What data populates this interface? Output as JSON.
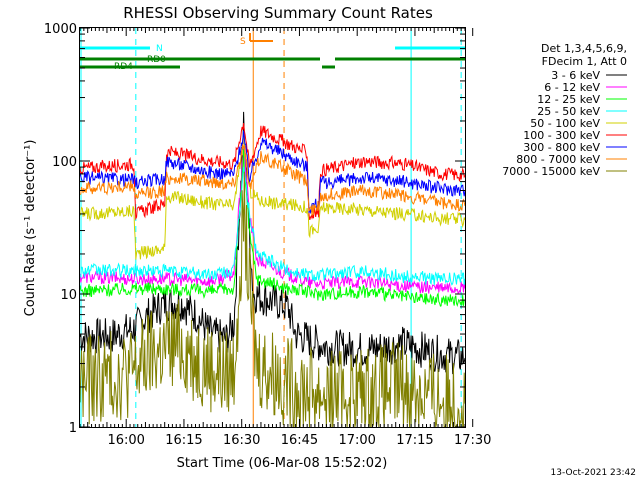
{
  "chart_data": {
    "type": "line",
    "title": "RHESSI Observing Summary Count Rates",
    "xlabel": "Start Time (06-Mar-08 15:52:02)",
    "ylabel": "Count Rate (s⁻¹ detector⁻¹)",
    "yscale": "log",
    "ylim": [
      1,
      1000
    ],
    "xlim_minutes": [
      -4,
      96
    ],
    "x_ticks": [
      {
        "t": 8,
        "label": "16:00"
      },
      {
        "t": 23,
        "label": "16:15"
      },
      {
        "t": 38,
        "label": "16:30"
      },
      {
        "t": 53,
        "label": "16:45"
      },
      {
        "t": 68,
        "label": "17:00"
      },
      {
        "t": 83,
        "label": "17:15"
      },
      {
        "t": 98,
        "label": "17:30"
      }
    ],
    "y_ticks": [
      {
        "v": 1,
        "label": "1"
      },
      {
        "v": 10,
        "label": "10"
      },
      {
        "v": 100,
        "label": "100"
      },
      {
        "v": 1000,
        "label": "1000"
      }
    ],
    "legend": {
      "placement": "right",
      "header": [
        "Det 1,3,4,5,6,9,",
        "FDecim 1, Att 0"
      ]
    },
    "series": [
      {
        "name": "3 - 6 keV",
        "color": "#000000",
        "points": [
          [
            -4,
            4.8
          ],
          [
            4,
            4.8
          ],
          [
            10,
            5.5
          ],
          [
            14,
            7
          ],
          [
            18,
            8.5
          ],
          [
            22,
            8.7
          ],
          [
            26,
            7
          ],
          [
            30,
            5
          ],
          [
            34,
            4.6
          ],
          [
            36,
            6
          ],
          [
            38.5,
            180
          ],
          [
            40,
            30
          ],
          [
            41,
            10
          ],
          [
            50,
            8
          ],
          [
            52,
            5
          ],
          [
            60,
            4
          ],
          [
            70,
            3.8
          ],
          [
            80,
            4.2
          ],
          [
            88,
            3.6
          ],
          [
            96,
            3.3
          ]
        ]
      },
      {
        "name": "6 - 12 keV",
        "color": "#ff00ff",
        "points": [
          [
            -4,
            13.5
          ],
          [
            10,
            13
          ],
          [
            18,
            13
          ],
          [
            30,
            12.5
          ],
          [
            36,
            14
          ],
          [
            38.5,
            130
          ],
          [
            40,
            40
          ],
          [
            42,
            18
          ],
          [
            50,
            14
          ],
          [
            56,
            12
          ],
          [
            60,
            12
          ],
          [
            70,
            12.5
          ],
          [
            80,
            11.5
          ],
          [
            90,
            11
          ],
          [
            96,
            11
          ]
        ]
      },
      {
        "name": "12 - 25 keV",
        "color": "#00ff00",
        "points": [
          [
            -4,
            10.5
          ],
          [
            10,
            11
          ],
          [
            18,
            11
          ],
          [
            30,
            10.5
          ],
          [
            36,
            11
          ],
          [
            38.5,
            110
          ],
          [
            40,
            28
          ],
          [
            42,
            13
          ],
          [
            50,
            11
          ],
          [
            58,
            10
          ],
          [
            70,
            10.5
          ],
          [
            80,
            9.5
          ],
          [
            90,
            9
          ],
          [
            96,
            9
          ]
        ]
      },
      {
        "name": "25 - 50 keV",
        "color": "#00ffff",
        "points": [
          [
            -4,
            15
          ],
          [
            10,
            15
          ],
          [
            18,
            15
          ],
          [
            30,
            14
          ],
          [
            36,
            15
          ],
          [
            38.5,
            90
          ],
          [
            40,
            40
          ],
          [
            42,
            20
          ],
          [
            50,
            15
          ],
          [
            56,
            14
          ],
          [
            60,
            14
          ],
          [
            70,
            15
          ],
          [
            80,
            13.5
          ],
          [
            90,
            13
          ],
          [
            96,
            13
          ]
        ]
      },
      {
        "name": "50 - 100 keV",
        "color": "#d0d000",
        "points": [
          [
            -4,
            40
          ],
          [
            10,
            42
          ],
          [
            10.5,
            20
          ],
          [
            18,
            22
          ],
          [
            18.5,
            55
          ],
          [
            30,
            48
          ],
          [
            36,
            46
          ],
          [
            38.5,
            150
          ],
          [
            40,
            60
          ],
          [
            43,
            50
          ],
          [
            55,
            45
          ],
          [
            55.5,
            30
          ],
          [
            58,
            30
          ],
          [
            58.5,
            45
          ],
          [
            70,
            43
          ],
          [
            80,
            40
          ],
          [
            90,
            37
          ],
          [
            96,
            36
          ]
        ]
      },
      {
        "name": "100 - 300 keV",
        "color": "#ff0000",
        "points": [
          [
            -4,
            88
          ],
          [
            10,
            95
          ],
          [
            10.5,
            40
          ],
          [
            18,
            48
          ],
          [
            18.5,
            118
          ],
          [
            30,
            100
          ],
          [
            36,
            95
          ],
          [
            38.5,
            200
          ],
          [
            40,
            90
          ],
          [
            43,
            170
          ],
          [
            55,
            115
          ],
          [
            55.5,
            38
          ],
          [
            58,
            42
          ],
          [
            58.5,
            85
          ],
          [
            70,
            100
          ],
          [
            80,
            95
          ],
          [
            90,
            80
          ],
          [
            96,
            78
          ]
        ]
      },
      {
        "name": "300 - 800 keV",
        "color": "#0000ff",
        "points": [
          [
            -4,
            75
          ],
          [
            10,
            72
          ],
          [
            10.5,
            68
          ],
          [
            18,
            74
          ],
          [
            18.5,
            100
          ],
          [
            30,
            82
          ],
          [
            36,
            80
          ],
          [
            38.5,
            160
          ],
          [
            40,
            75
          ],
          [
            43,
            140
          ],
          [
            55,
            90
          ],
          [
            55.5,
            45
          ],
          [
            58,
            48
          ],
          [
            58.5,
            68
          ],
          [
            70,
            75
          ],
          [
            80,
            70
          ],
          [
            90,
            62
          ],
          [
            96,
            60
          ]
        ]
      },
      {
        "name": "800 - 7000 keV",
        "color": "#ff8000",
        "points": [
          [
            -4,
            62
          ],
          [
            10,
            64
          ],
          [
            10.5,
            55
          ],
          [
            18,
            60
          ],
          [
            18.5,
            75
          ],
          [
            30,
            70
          ],
          [
            36,
            68
          ],
          [
            38.5,
            135
          ],
          [
            40,
            62
          ],
          [
            43,
            110
          ],
          [
            55,
            70
          ],
          [
            55.5,
            42
          ],
          [
            58,
            45
          ],
          [
            58.5,
            55
          ],
          [
            70,
            60
          ],
          [
            80,
            55
          ],
          [
            90,
            48
          ],
          [
            96,
            46
          ]
        ]
      },
      {
        "name": "7000 - 15000 keV",
        "color": "#808000",
        "points": [
          [
            -4,
            2.2
          ],
          [
            10,
            2.6
          ],
          [
            14,
            3.4
          ],
          [
            18,
            3.8
          ],
          [
            22,
            4.2
          ],
          [
            26,
            3.4
          ],
          [
            30,
            2.8
          ],
          [
            34,
            2.4
          ],
          [
            36,
            2.8
          ],
          [
            38.5,
            45
          ],
          [
            40,
            10
          ],
          [
            42,
            3
          ],
          [
            50,
            2.2
          ],
          [
            58,
            1.8
          ],
          [
            70,
            1.8
          ],
          [
            80,
            2
          ],
          [
            90,
            1.6
          ],
          [
            96,
            1.5
          ]
        ]
      }
    ],
    "top_bar_labels": [
      {
        "label": "N",
        "color": "#00ffff"
      },
      {
        "label": "RD0",
        "color": "#008000"
      },
      {
        "label": "RD4",
        "color": "#008000"
      },
      {
        "label": "S",
        "color": "#ff8000"
      }
    ],
    "vertical_markers": [
      {
        "t": -4,
        "color": "#00ffff",
        "style": "solid"
      },
      {
        "t": 10.5,
        "color": "#00ffff",
        "style": "dashed"
      },
      {
        "t": 82,
        "color": "#00ffff",
        "style": "solid"
      },
      {
        "t": 95,
        "color": "#00ffff",
        "style": "dashed"
      },
      {
        "t": 41,
        "color": "#ff8000",
        "style": "solid"
      },
      {
        "t": 49,
        "color": "#ff8000",
        "style": "dashed"
      }
    ],
    "footer_timestamp": "13-Oct-2021 23:42"
  }
}
